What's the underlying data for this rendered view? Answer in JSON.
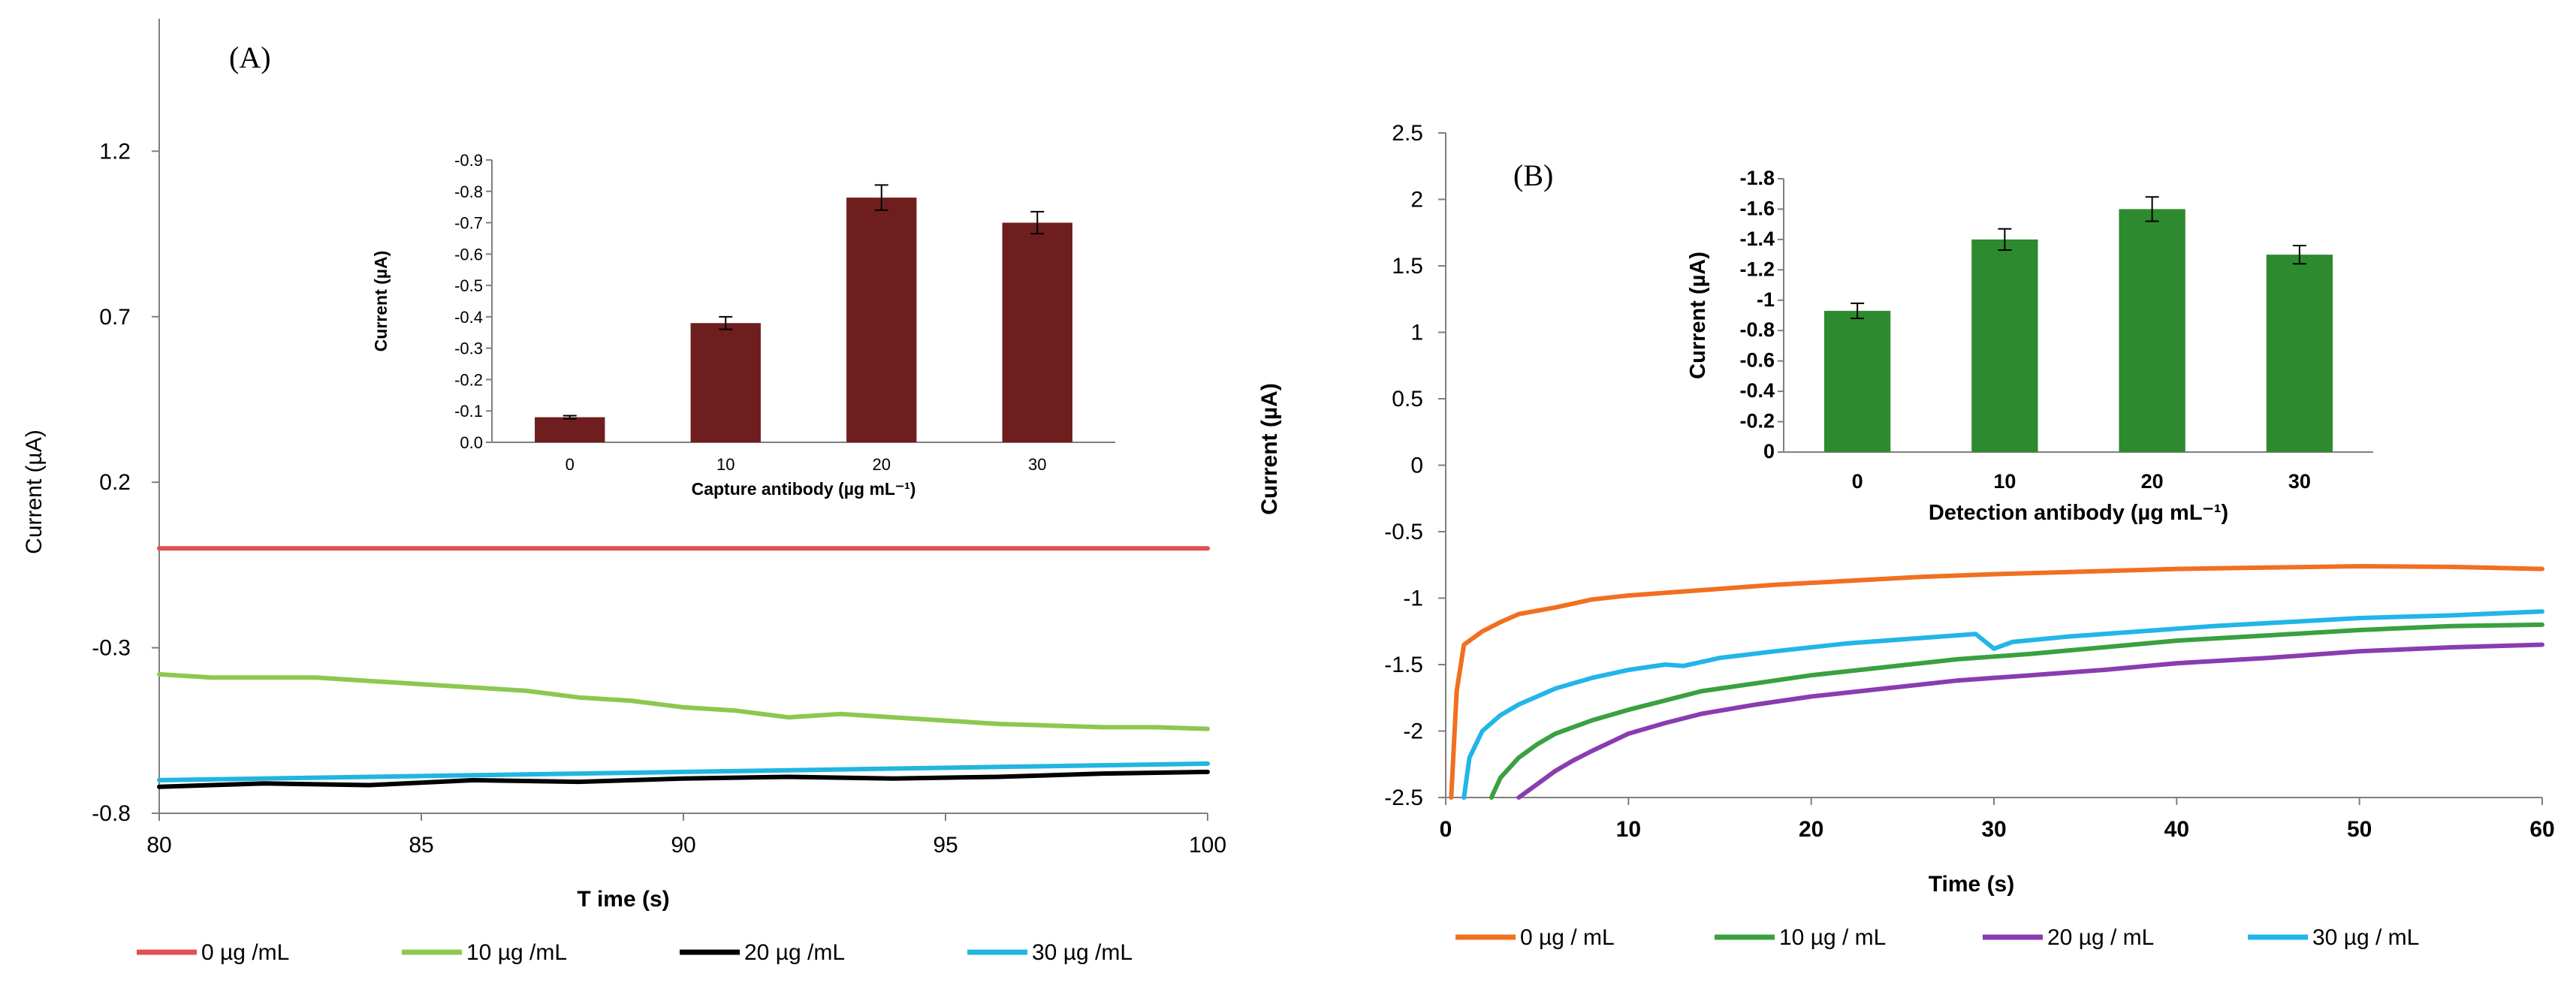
{
  "chart_data": [
    {
      "panel": "(A)",
      "type": "line",
      "title": "",
      "xlabel": "T ime (s)",
      "ylabel": "Current (µA)",
      "xlim": [
        80,
        100
      ],
      "ylim": [
        -0.8,
        1.6
      ],
      "xticks": [
        "80",
        "85",
        "90",
        "95",
        "100"
      ],
      "yticks": [
        "1.2",
        "0.7",
        "0.2",
        "-0.3",
        "-0.8"
      ],
      "ytick_values": [
        1.2,
        0.7,
        0.2,
        -0.3,
        -0.8
      ],
      "xtick_values": [
        80,
        85,
        90,
        95,
        100
      ],
      "series": [
        {
          "name": "0 µg /mL",
          "color": "#e05050",
          "x": [
            80,
            82,
            84,
            86,
            88,
            90,
            92,
            94,
            96,
            98,
            100
          ],
          "y": [
            0.0,
            0.0,
            0.0,
            0.0,
            0.0,
            0.0,
            0.0,
            0.0,
            0.0,
            0.0,
            0.0
          ]
        },
        {
          "name": "10 µg /mL",
          "color": "#8cc850",
          "x": [
            80,
            81,
            82,
            83,
            84,
            85,
            86,
            87,
            88,
            89,
            90,
            91,
            92,
            93,
            94,
            95,
            96,
            97,
            98,
            99,
            100
          ],
          "y": [
            -0.38,
            -0.39,
            -0.39,
            -0.39,
            -0.4,
            -0.41,
            -0.42,
            -0.43,
            -0.45,
            -0.46,
            -0.48,
            -0.49,
            -0.51,
            -0.5,
            -0.51,
            -0.52,
            -0.53,
            -0.535,
            -0.54,
            -0.54,
            -0.545
          ]
        },
        {
          "name": "20  µg /mL",
          "color": "#000000",
          "x": [
            80,
            82,
            84,
            86,
            88,
            90,
            92,
            94,
            96,
            98,
            100
          ],
          "y": [
            -0.72,
            -0.71,
            -0.715,
            -0.7,
            -0.705,
            -0.695,
            -0.69,
            -0.695,
            -0.69,
            -0.68,
            -0.675
          ]
        },
        {
          "name": "30 µg /mL",
          "color": "#22b5e0",
          "x": [
            80,
            82,
            84,
            86,
            88,
            90,
            92,
            94,
            96,
            98,
            100
          ],
          "y": [
            -0.7,
            -0.695,
            -0.69,
            -0.685,
            -0.68,
            -0.675,
            -0.67,
            -0.665,
            -0.66,
            -0.655,
            -0.65
          ]
        }
      ],
      "legend_position": "bottom",
      "inset": {
        "type": "bar",
        "xlabel": "Capture antibody (µg mL⁻¹)",
        "ylabel": "Current (µA)",
        "categories": [
          "0",
          "10",
          "20",
          "30"
        ],
        "values": [
          -0.08,
          -0.38,
          -0.78,
          -0.7
        ],
        "errors": [
          0.005,
          0.02,
          0.04,
          0.035
        ],
        "ylim": [
          0,
          -0.9
        ],
        "yticks": [
          "-0.9",
          "-0.8",
          "-0.7",
          "-0.6",
          "-0.5",
          "-0.4",
          "-0.3",
          "-0.2",
          "-0.1",
          "0.0"
        ],
        "ytick_values": [
          -0.9,
          -0.8,
          -0.7,
          -0.6,
          -0.5,
          -0.4,
          -0.3,
          -0.2,
          -0.1,
          0.0
        ],
        "color": "#6e1e1e"
      }
    },
    {
      "panel": "(B)",
      "type": "line",
      "title": "",
      "xlabel": "Time (s)",
      "ylabel": "Current (µA)",
      "xlim": [
        0,
        60
      ],
      "ylim": [
        -2.5,
        2.5
      ],
      "xticks": [
        "0",
        "10",
        "20",
        "30",
        "40",
        "50",
        "60"
      ],
      "xtick_values": [
        0,
        10,
        20,
        30,
        40,
        50,
        60
      ],
      "yticks": [
        "2.5",
        "2",
        "1.5",
        "1",
        "0.5",
        "0",
        "-0.5",
        "-1",
        "-1.5",
        "-2",
        "-2.5"
      ],
      "ytick_values": [
        2.5,
        2,
        1.5,
        1,
        0.5,
        0,
        -0.5,
        -1,
        -1.5,
        -2,
        -2.5
      ],
      "series": [
        {
          "name": "0 µg / mL",
          "color": "#f07020",
          "x": [
            0.3,
            0.6,
            1.0,
            2,
            3,
            4,
            6,
            8,
            10,
            14,
            18,
            22,
            26,
            30,
            35,
            40,
            45,
            50,
            55,
            60
          ],
          "y": [
            -2.5,
            -1.7,
            -1.35,
            -1.25,
            -1.18,
            -1.12,
            -1.07,
            -1.01,
            -0.98,
            -0.94,
            -0.9,
            -0.87,
            -0.84,
            -0.82,
            -0.8,
            -0.78,
            -0.77,
            -0.76,
            -0.765,
            -0.78
          ]
        },
        {
          "name": "10 µg / mL",
          "color": "#3aa040",
          "x": [
            2.5,
            3,
            4,
            5,
            6,
            8,
            10,
            12,
            14,
            17,
            20,
            24,
            28,
            32,
            36,
            40,
            45,
            50,
            55,
            60
          ],
          "y": [
            -2.5,
            -2.35,
            -2.2,
            -2.1,
            -2.02,
            -1.92,
            -1.84,
            -1.77,
            -1.7,
            -1.64,
            -1.58,
            -1.52,
            -1.46,
            -1.42,
            -1.37,
            -1.32,
            -1.28,
            -1.24,
            -1.21,
            -1.2
          ]
        },
        {
          "name": "20 µg / mL",
          "color": "#8a3cb0",
          "x": [
            4,
            5,
            6,
            7,
            8,
            10,
            12,
            14,
            17,
            20,
            24,
            28,
            32,
            36,
            40,
            45,
            50,
            55,
            60
          ],
          "y": [
            -2.5,
            -2.4,
            -2.3,
            -2.22,
            -2.15,
            -2.02,
            -1.94,
            -1.87,
            -1.8,
            -1.74,
            -1.68,
            -1.62,
            -1.58,
            -1.54,
            -1.49,
            -1.45,
            -1.4,
            -1.37,
            -1.35
          ]
        },
        {
          "name": "30 µg / mL",
          "color": "#22b5e8",
          "x": [
            1.0,
            1.3,
            2,
            3,
            4,
            5,
            6,
            8,
            10,
            12,
            13,
            15,
            18,
            22,
            26,
            29,
            30,
            31,
            34,
            38,
            42,
            46,
            50,
            55,
            60
          ],
          "y": [
            -2.5,
            -2.2,
            -2.0,
            -1.88,
            -1.8,
            -1.74,
            -1.68,
            -1.6,
            -1.54,
            -1.5,
            -1.51,
            -1.45,
            -1.4,
            -1.34,
            -1.3,
            -1.27,
            -1.38,
            -1.33,
            -1.29,
            -1.25,
            -1.21,
            -1.18,
            -1.15,
            -1.13,
            -1.1
          ]
        }
      ],
      "legend_position": "bottom",
      "inset": {
        "type": "bar",
        "xlabel": "Detection antibody (µg mL⁻¹)",
        "ylabel": "Current (µA)",
        "categories": [
          "0",
          "10",
          "20",
          "30"
        ],
        "values": [
          -0.93,
          -1.4,
          -1.6,
          -1.3
        ],
        "errors": [
          0.05,
          0.07,
          0.08,
          0.06
        ],
        "ylim": [
          0,
          -1.8
        ],
        "yticks": [
          "-1.8",
          "-1.6",
          "-1.4",
          "-1.2",
          "-1",
          "-0.8",
          "-0.6",
          "-0.4",
          "-0.2",
          "0"
        ],
        "ytick_values": [
          -1.8,
          -1.6,
          -1.4,
          -1.2,
          -1.0,
          -0.8,
          -0.6,
          -0.4,
          -0.2,
          0.0
        ],
        "color": "#2e8a2e"
      }
    }
  ]
}
